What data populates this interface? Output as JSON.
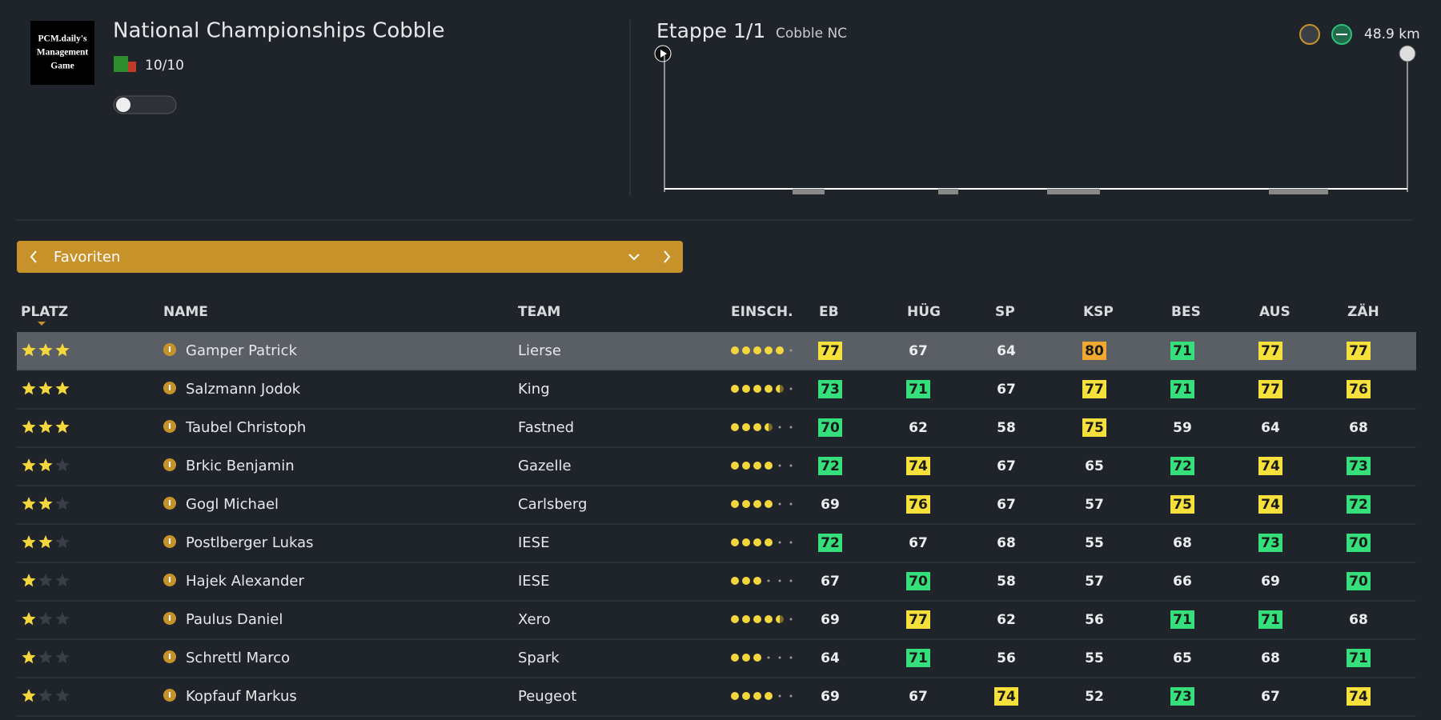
{
  "header": {
    "logo_lines": [
      "PCM.daily's",
      "Management",
      "Game"
    ],
    "title": "National Championships Cobble",
    "rank": "10/10"
  },
  "stage": {
    "label": "Etappe 1/1",
    "name": "Cobble NC",
    "distance": "48.9 km"
  },
  "filter": {
    "label": "Favoriten"
  },
  "table": {
    "columns": [
      "PLATZ",
      "NAME",
      "TEAM",
      "EINSCH.",
      "EB",
      "HÜG",
      "SP",
      "KSP",
      "BES",
      "AUS",
      "ZÄH"
    ],
    "rows": [
      {
        "stars": 3,
        "name": "Gamper Patrick",
        "team": "Lierse",
        "form": 5,
        "stats": [
          77,
          67,
          64,
          80,
          71,
          77,
          77
        ],
        "highlights": [
          "yellow",
          null,
          null,
          "orange",
          "green",
          "yellow",
          "yellow"
        ]
      },
      {
        "stars": 3,
        "name": "Salzmann Jodok",
        "team": "King",
        "form": 4.5,
        "stats": [
          73,
          71,
          67,
          77,
          71,
          77,
          76
        ],
        "highlights": [
          "green",
          "green",
          null,
          "yellow",
          "green",
          "yellow",
          "yellow"
        ]
      },
      {
        "stars": 3,
        "name": "Taubel Christoph",
        "team": "Fastned",
        "form": 3.5,
        "stats": [
          70,
          62,
          58,
          75,
          59,
          64,
          68
        ],
        "highlights": [
          "green",
          null,
          null,
          "yellow",
          null,
          null,
          null
        ]
      },
      {
        "stars": 2,
        "name": "Brkic Benjamin",
        "team": "Gazelle",
        "form": 4,
        "stats": [
          72,
          74,
          67,
          65,
          72,
          74,
          73
        ],
        "highlights": [
          "green",
          "yellow",
          null,
          null,
          "green",
          "yellow",
          "green"
        ]
      },
      {
        "stars": 2,
        "name": "Gogl Michael",
        "team": "Carlsberg",
        "form": 4,
        "stats": [
          69,
          76,
          67,
          57,
          75,
          74,
          72
        ],
        "highlights": [
          null,
          "yellow",
          null,
          null,
          "yellow",
          "yellow",
          "green"
        ]
      },
      {
        "stars": 2,
        "name": "Postlberger Lukas",
        "team": "IESE",
        "form": 4,
        "stats": [
          72,
          67,
          68,
          55,
          68,
          73,
          70
        ],
        "highlights": [
          "green",
          null,
          null,
          null,
          null,
          "green",
          "green"
        ]
      },
      {
        "stars": 1,
        "name": "Hajek Alexander",
        "team": "IESE",
        "form": 3,
        "stats": [
          67,
          70,
          58,
          57,
          66,
          69,
          70
        ],
        "highlights": [
          null,
          "green",
          null,
          null,
          null,
          null,
          "green"
        ]
      },
      {
        "stars": 1,
        "name": "Paulus Daniel",
        "team": "Xero",
        "form": 4.5,
        "stats": [
          69,
          77,
          62,
          56,
          71,
          71,
          68
        ],
        "highlights": [
          null,
          "yellow",
          null,
          null,
          "green",
          "green",
          null
        ]
      },
      {
        "stars": 1,
        "name": "Schrettl Marco",
        "team": "Spark",
        "form": 3,
        "stats": [
          64,
          71,
          56,
          55,
          65,
          68,
          71
        ],
        "highlights": [
          null,
          "green",
          null,
          null,
          null,
          null,
          "green"
        ]
      },
      {
        "stars": 1,
        "name": "Kopfauf Markus",
        "team": "Peugeot",
        "form": 4,
        "stats": [
          69,
          67,
          74,
          52,
          73,
          67,
          74
        ],
        "highlights": [
          null,
          null,
          "yellow",
          null,
          "green",
          null,
          "yellow"
        ]
      }
    ]
  }
}
